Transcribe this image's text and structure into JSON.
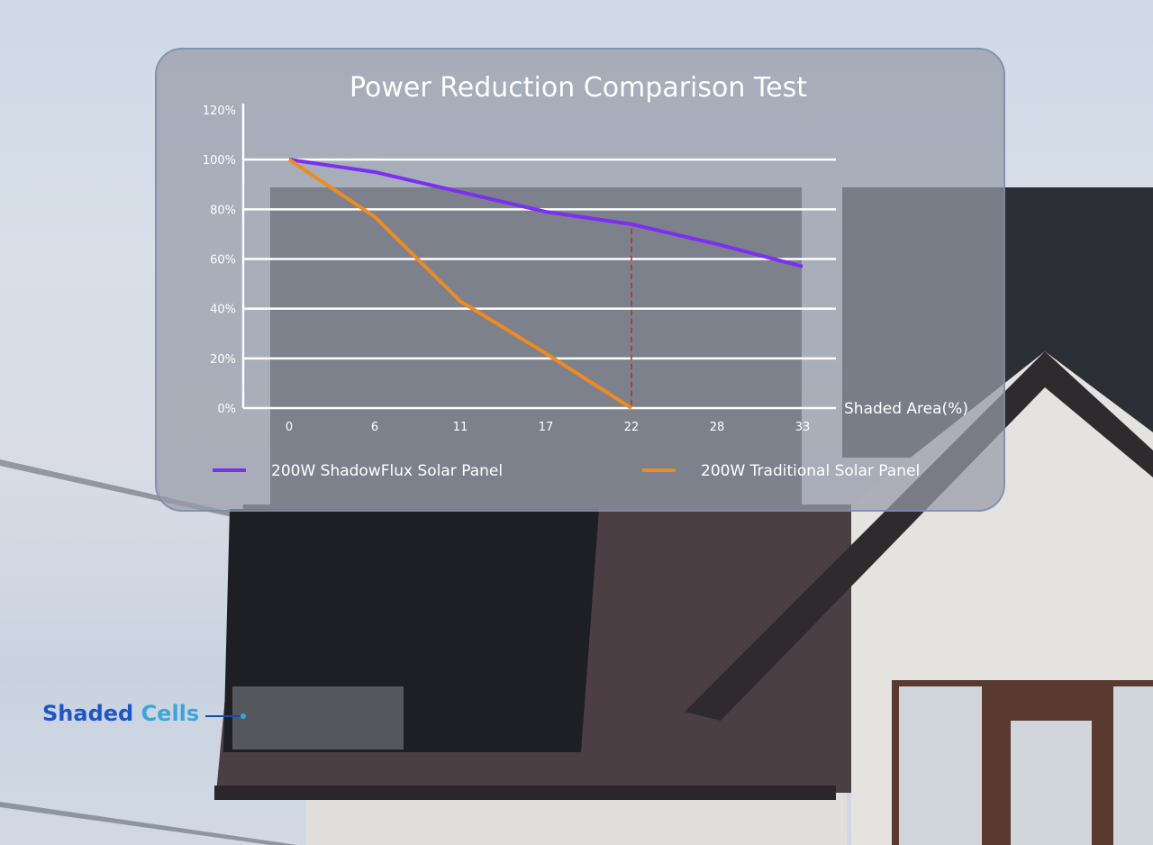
{
  "chart_data": {
    "type": "line",
    "title": "Power Reduction Comparison Test",
    "xlabel": "Shaded Area(%)",
    "ylabel": "",
    "categories": [
      "0",
      "6",
      "11",
      "17",
      "22",
      "28",
      "33"
    ],
    "yticks": [
      "0%",
      "20%",
      "40%",
      "60%",
      "80%",
      "100%",
      "120%"
    ],
    "ylim": [
      0,
      120
    ],
    "grid": true,
    "legend": "bottom",
    "series": [
      {
        "name": "200W ShadowFlux Solar Panel",
        "color": "#7b2ff0",
        "values": [
          100,
          95,
          87,
          79,
          74,
          66,
          57
        ]
      },
      {
        "name": "200W Traditional Solar Panel",
        "color": "#f08a1e",
        "values": [
          100,
          77,
          43,
          22,
          0,
          null,
          null
        ]
      }
    ],
    "annotations": [
      {
        "type": "dashed-vertical",
        "x": "22",
        "color": "#c0282a"
      }
    ]
  },
  "callout": {
    "word1": "Shaded",
    "word2": "Cells"
  }
}
